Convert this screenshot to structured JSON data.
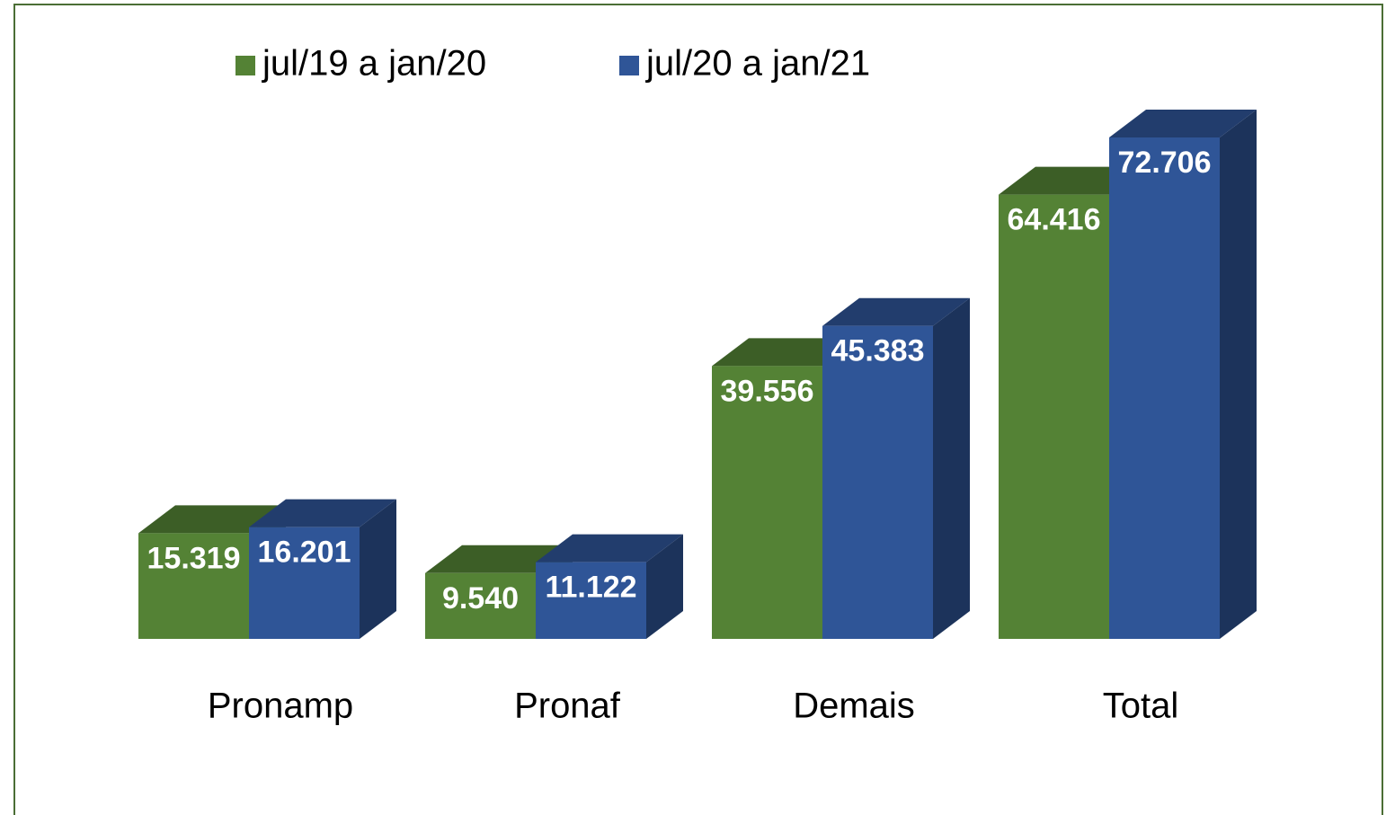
{
  "chart_data": {
    "type": "bar3d",
    "categories": [
      "Pronamp",
      "Pronaf",
      "Demais",
      "Total"
    ],
    "series": [
      {
        "name": "jul/19 a jan/20",
        "color": "#548235",
        "values": [
          15319,
          9540,
          39556,
          64416
        ],
        "value_labels": [
          "15.319",
          "9.540",
          "39.556",
          "64.416"
        ]
      },
      {
        "name": "jul/20 a jan/21",
        "color": "#2f5597",
        "values": [
          16201,
          11122,
          45383,
          72706
        ],
        "value_labels": [
          "16.201",
          "11.122",
          "45.383",
          "72.706"
        ]
      }
    ]
  }
}
